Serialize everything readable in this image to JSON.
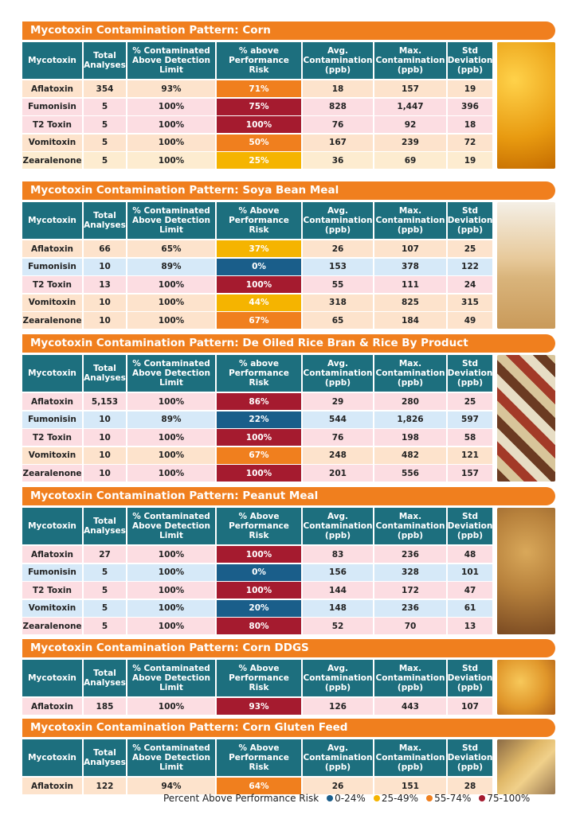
{
  "sections": [
    {
      "title": "Mycotoxin Contamination Pattern: Corn",
      "headers": [
        "Mycotoxin",
        "Total Analyses",
        "% Contaminated Above Detection Limit",
        "% above Performance Risk",
        "Avg. Contamination (ppb)",
        "Max. Contamination (ppb)",
        "Std Deviation (ppb)"
      ],
      "rows": [
        {
          "cells": [
            "Aflatoxin",
            "354",
            "93%",
            "71%",
            "18",
            "157",
            "19"
          ],
          "bg": "#fde3cc",
          "risk_color": "#f07f1e"
        },
        {
          "cells": [
            "Fumonisin",
            "5",
            "100%",
            "75%",
            "828",
            "1,447",
            "396"
          ],
          "bg": "#fcdde2",
          "risk_color": "#a51b2f"
        },
        {
          "cells": [
            "T2 Toxin",
            "5",
            "100%",
            "100%",
            "76",
            "92",
            "18"
          ],
          "bg": "#fcdde2",
          "risk_color": "#a51b2f"
        },
        {
          "cells": [
            "Vomitoxin",
            "5",
            "100%",
            "50%",
            "167",
            "239",
            "72"
          ],
          "bg": "#fde3cc",
          "risk_color": "#f07f1e"
        },
        {
          "cells": [
            "Zearalenone",
            "5",
            "100%",
            "25%",
            "36",
            "69",
            "19"
          ],
          "bg": "#fdecd0",
          "risk_color": "#f5b400"
        }
      ]
    },
    {
      "title": "Mycotoxin Contamination Pattern: Soya Bean Meal",
      "headers": [
        "Mycotoxin",
        "Total Analyses",
        "% Contaminated Above Detection Limit",
        "% Above Performance Risk",
        "Avg. Contamination (ppb)",
        "Max. Contamination (ppb)",
        "Std Deviation (ppb)"
      ],
      "rows": [
        {
          "cells": [
            "Aflatoxin",
            "66",
            "65%",
            "37%",
            "26",
            "107",
            "25"
          ],
          "bg": "#fde3cc",
          "risk_color": "#f5b400"
        },
        {
          "cells": [
            "Fumonisin",
            "10",
            "89%",
            "0%",
            "153",
            "378",
            "122"
          ],
          "bg": "#d6e9f8",
          "risk_color": "#1a5e8a"
        },
        {
          "cells": [
            "T2 Toxin",
            "13",
            "100%",
            "100%",
            "55",
            "111",
            "24"
          ],
          "bg": "#fcdde2",
          "risk_color": "#a51b2f"
        },
        {
          "cells": [
            "Vomitoxin",
            "10",
            "100%",
            "44%",
            "318",
            "825",
            "315"
          ],
          "bg": "#fde3cc",
          "risk_color": "#f5b400"
        },
        {
          "cells": [
            "Zearalenone",
            "10",
            "100%",
            "67%",
            "65",
            "184",
            "49"
          ],
          "bg": "#fde3cc",
          "risk_color": "#f07f1e"
        }
      ]
    },
    {
      "title": "Mycotoxin Contamination Pattern: De Oiled Rice Bran & Rice By Product",
      "headers": [
        "Mycotoxin",
        "Total Analyses",
        "% Contaminated Above Detection Limit",
        "% above Performance Risk",
        "Avg. Contamination (ppb)",
        "Max. Contamination (ppb)",
        "Std Deviation (ppb)"
      ],
      "rows": [
        {
          "cells": [
            "Aflatoxin",
            "5,153",
            "100%",
            "86%",
            "29",
            "280",
            "25"
          ],
          "bg": "#fcdde2",
          "risk_color": "#a51b2f"
        },
        {
          "cells": [
            "Fumonisin",
            "10",
            "89%",
            "22%",
            "544",
            "1,826",
            "597"
          ],
          "bg": "#d6e9f8",
          "risk_color": "#1a5e8a"
        },
        {
          "cells": [
            "T2 Toxin",
            "10",
            "100%",
            "100%",
            "76",
            "198",
            "58"
          ],
          "bg": "#fcdde2",
          "risk_color": "#a51b2f"
        },
        {
          "cells": [
            "Vomitoxin",
            "10",
            "100%",
            "67%",
            "248",
            "482",
            "121"
          ],
          "bg": "#fde3cc",
          "risk_color": "#f07f1e"
        },
        {
          "cells": [
            "Zearalenone",
            "10",
            "100%",
            "100%",
            "201",
            "556",
            "157"
          ],
          "bg": "#fcdde2",
          "risk_color": "#a51b2f"
        }
      ]
    },
    {
      "title": "Mycotoxin Contamination Pattern: Peanut Meal",
      "headers": [
        "Mycotoxin",
        "Total Analyses",
        "% Contaminated Above Detection Limit",
        "% Above Performance Risk",
        "Avg. Contamination (ppb)",
        "Max. Contamination (ppb)",
        "Std Deviation (ppb)"
      ],
      "rows": [
        {
          "cells": [
            "Aflatoxin",
            "27",
            "100%",
            "100%",
            "83",
            "236",
            "48"
          ],
          "bg": "#fcdde2",
          "risk_color": "#a51b2f"
        },
        {
          "cells": [
            "Fumonisin",
            "5",
            "100%",
            "0%",
            "156",
            "328",
            "101"
          ],
          "bg": "#d6e9f8",
          "risk_color": "#1a5e8a"
        },
        {
          "cells": [
            "T2 Toxin",
            "5",
            "100%",
            "100%",
            "144",
            "172",
            "47"
          ],
          "bg": "#fcdde2",
          "risk_color": "#a51b2f"
        },
        {
          "cells": [
            "Vomitoxin",
            "5",
            "100%",
            "20%",
            "148",
            "236",
            "61"
          ],
          "bg": "#d6e9f8",
          "risk_color": "#1a5e8a"
        },
        {
          "cells": [
            "Zearalenone",
            "5",
            "100%",
            "80%",
            "52",
            "70",
            "13"
          ],
          "bg": "#fcdde2",
          "risk_color": "#a51b2f"
        }
      ]
    },
    {
      "title": "Mycotoxin Contamination Pattern: Corn DDGS",
      "headers": [
        "Mycotoxin",
        "Total Analyses",
        "% Contaminated Above Detection Limit",
        "% Above Performance Risk",
        "Avg. Contamination (ppb)",
        "Max. Contamination (ppb)",
        "Std Deviation (ppb)"
      ],
      "rows": [
        {
          "cells": [
            "Aflatoxin",
            "185",
            "100%",
            "93%",
            "126",
            "443",
            "107"
          ],
          "bg": "#fcdde2",
          "risk_color": "#a51b2f"
        }
      ]
    },
    {
      "title": "Mycotoxin Contamination Pattern: Corn Gluten Feed",
      "headers": [
        "Mycotoxin",
        "Total Analyses",
        "% Contaminated Above Detection Limit",
        "% Above Performance Risk",
        "Avg. Contamination (ppb)",
        "Max. Contamination (ppb)",
        "Std Deviation (ppb)"
      ],
      "rows": [
        {
          "cells": [
            "Aflatoxin",
            "122",
            "94%",
            "64%",
            "26",
            "151",
            "28"
          ],
          "bg": "#fde3cc",
          "risk_color": "#f07f1e"
        }
      ]
    }
  ],
  "legend": {
    "title": "Percent Above Performance Risk",
    "items": [
      {
        "label": "0-24%",
        "color": "#1a5e8a"
      },
      {
        "label": "25-49%",
        "color": "#f5b400"
      },
      {
        "label": "55-74%",
        "color": "#f07f1e"
      },
      {
        "label": "75-100%",
        "color": "#a51b2f"
      }
    ]
  }
}
